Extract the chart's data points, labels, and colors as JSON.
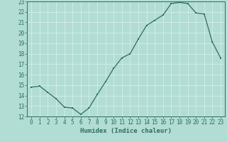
{
  "x": [
    0,
    1,
    2,
    3,
    4,
    5,
    6,
    7,
    8,
    9,
    10,
    11,
    12,
    13,
    14,
    15,
    16,
    17,
    18,
    19,
    20,
    21,
    22,
    23
  ],
  "y": [
    14.8,
    14.9,
    14.3,
    13.7,
    12.9,
    12.8,
    12.2,
    12.8,
    14.1,
    15.3,
    16.6,
    17.6,
    18.0,
    19.4,
    20.7,
    21.2,
    21.7,
    22.8,
    22.9,
    22.8,
    21.9,
    21.8,
    19.1,
    17.6
  ],
  "xlabel": "Humidex (Indice chaleur)",
  "ylabel": "",
  "ylim": [
    12,
    23
  ],
  "xlim": [
    -0.5,
    23.5
  ],
  "yticks": [
    12,
    13,
    14,
    15,
    16,
    17,
    18,
    19,
    20,
    21,
    22,
    23
  ],
  "xticks": [
    0,
    1,
    2,
    3,
    4,
    5,
    6,
    7,
    8,
    9,
    10,
    11,
    12,
    13,
    14,
    15,
    16,
    17,
    18,
    19,
    20,
    21,
    22,
    23
  ],
  "line_color": "#2d6e5e",
  "marker_color": "#2d6e5e",
  "bg_color": "#b2ddd4",
  "grid_color": "#d4eeea",
  "axes_color": "#2d6e5e",
  "tick_fontsize": 5.5,
  "xlabel_fontsize": 6.5
}
